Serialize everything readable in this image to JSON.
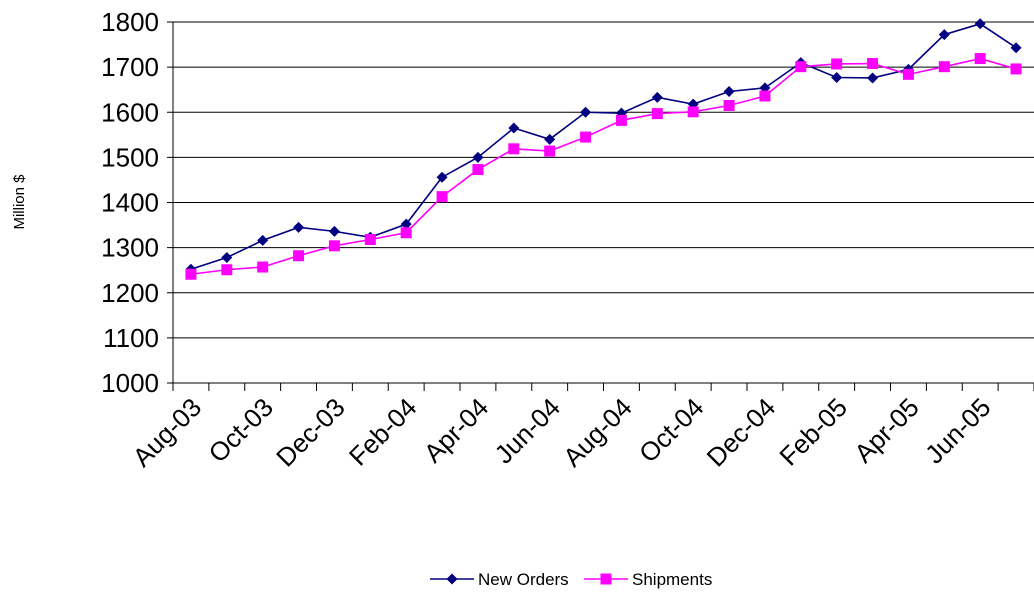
{
  "chart_data": {
    "type": "line",
    "title": "",
    "xlabel": "",
    "ylabel": "Million $",
    "ylim": [
      1000,
      1800
    ],
    "yticks": [
      1000,
      1100,
      1200,
      1300,
      1400,
      1500,
      1600,
      1700,
      1800
    ],
    "grid": "horizontal",
    "legend_position": "bottom",
    "x": [
      "Aug-03",
      "Sep-03",
      "Oct-03",
      "Nov-03",
      "Dec-03",
      "Jan-04",
      "Feb-04",
      "Mar-04",
      "Apr-04",
      "May-04",
      "Jun-04",
      "Jul-04",
      "Aug-04",
      "Sep-04",
      "Oct-04",
      "Nov-04",
      "Dec-04",
      "Jan-05",
      "Feb-05",
      "Mar-05",
      "Apr-05",
      "May-05",
      "Jun-05",
      "Jul-05"
    ],
    "x_tick_labels": [
      "Aug-03",
      "Oct-03",
      "Dec-03",
      "Feb-04",
      "Apr-04",
      "Jun-04",
      "Aug-04",
      "Oct-04",
      "Dec-04",
      "Feb-05",
      "Apr-05",
      "Jun-05"
    ],
    "series": [
      {
        "name": "New Orders",
        "color": "#000080",
        "marker": "diamond",
        "values": [
          1252,
          1278,
          1316,
          1345,
          1336,
          1323,
          1352,
          1456,
          1500,
          1565,
          1540,
          1600,
          1598,
          1633,
          1618,
          1646,
          1654,
          1710,
          1677,
          1676,
          1695,
          1772,
          1796,
          1743
        ]
      },
      {
        "name": "Shipments",
        "color": "#ff00ff",
        "marker": "square",
        "values": [
          1241,
          1251,
          1257,
          1282,
          1304,
          1318,
          1333,
          1413,
          1473,
          1519,
          1514,
          1545,
          1582,
          1597,
          1601,
          1615,
          1636,
          1701,
          1707,
          1708,
          1684,
          1701,
          1719,
          1696
        ]
      }
    ]
  }
}
